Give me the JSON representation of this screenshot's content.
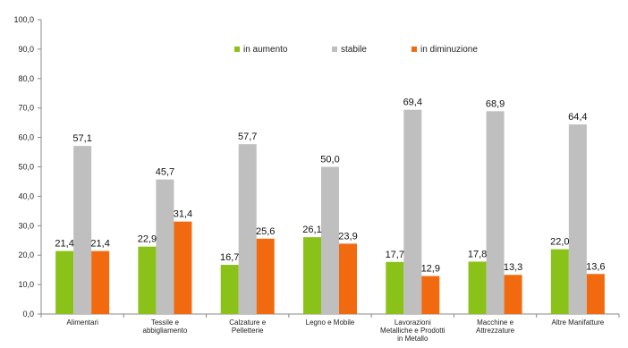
{
  "chart_data": {
    "type": "bar",
    "ylim": [
      0,
      100
    ],
    "ytick_step": 10,
    "grid": false,
    "legend_position": "top",
    "categories": [
      [
        "Alimentari"
      ],
      [
        "Tessile e",
        "abbigliamento"
      ],
      [
        "Calzature e",
        "Pelletterie"
      ],
      [
        "Legno e Mobile"
      ],
      [
        "Lavorazioni",
        "Metalliche e Prodotti",
        "in Metallo"
      ],
      [
        "Macchine e",
        "Attrezzature"
      ],
      [
        "Altre Manifatture"
      ]
    ],
    "series": [
      {
        "name": "in aumento",
        "color": "#8bc21a",
        "values": [
          21.4,
          22.9,
          16.7,
          26.1,
          17.7,
          17.8,
          22.0
        ]
      },
      {
        "name": "stabile",
        "color": "#bfbfbf",
        "values": [
          57.1,
          45.7,
          57.7,
          50.0,
          69.4,
          68.9,
          64.4
        ]
      },
      {
        "name": "in diminuzione",
        "color": "#f26a10",
        "values": [
          21.4,
          31.4,
          25.6,
          23.9,
          12.9,
          13.3,
          13.6
        ]
      }
    ]
  }
}
